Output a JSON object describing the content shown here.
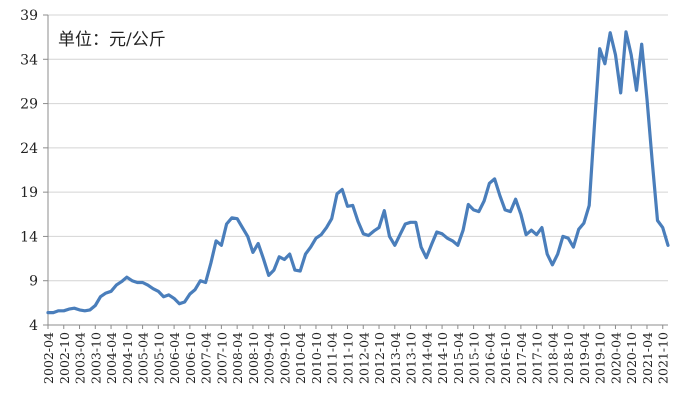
{
  "chart_data": {
    "type": "line",
    "title": "",
    "unit_note": "单位：元/公斤",
    "xlabel": "",
    "ylabel": "",
    "ylim": [
      4,
      39
    ],
    "y_ticks": [
      4,
      9,
      14,
      19,
      24,
      29,
      34,
      39
    ],
    "x_tick_labels": [
      "2002-04",
      "2002-10",
      "2003-04",
      "2003-10",
      "2004-04",
      "2004-10",
      "2005-04",
      "2005-10",
      "2006-04",
      "2006-10",
      "2007-04",
      "2007-10",
      "2008-04",
      "2008-10",
      "2009-04",
      "2009-10",
      "2010-04",
      "2010-10",
      "2011-04",
      "2011-10",
      "2012-04",
      "2012-10",
      "2013-04",
      "2013-10",
      "2014-04",
      "2014-10",
      "2015-04",
      "2015-10",
      "2016-04",
      "2016-10",
      "2017-04",
      "2017-10",
      "2018-04",
      "2018-10",
      "2019-04",
      "2019-10",
      "2020-04",
      "2020-10",
      "2021-04",
      "2021-10"
    ],
    "grid": "horizontal",
    "legend": "none",
    "line_color": "#4a7ebb",
    "series": [
      {
        "name": "",
        "points": [
          [
            "2002-04",
            5.4
          ],
          [
            "2002-06",
            5.4
          ],
          [
            "2002-08",
            5.6
          ],
          [
            "2002-10",
            5.6
          ],
          [
            "2002-12",
            5.8
          ],
          [
            "2003-02",
            5.9
          ],
          [
            "2003-04",
            5.7
          ],
          [
            "2003-06",
            5.6
          ],
          [
            "2003-08",
            5.7
          ],
          [
            "2003-10",
            6.2
          ],
          [
            "2003-12",
            7.2
          ],
          [
            "2004-02",
            7.6
          ],
          [
            "2004-04",
            7.8
          ],
          [
            "2004-06",
            8.5
          ],
          [
            "2004-08",
            8.9
          ],
          [
            "2004-10",
            9.4
          ],
          [
            "2004-12",
            9.0
          ],
          [
            "2005-02",
            8.8
          ],
          [
            "2005-04",
            8.8
          ],
          [
            "2005-06",
            8.5
          ],
          [
            "2005-08",
            8.1
          ],
          [
            "2005-10",
            7.8
          ],
          [
            "2005-12",
            7.2
          ],
          [
            "2006-02",
            7.4
          ],
          [
            "2006-04",
            7.0
          ],
          [
            "2006-06",
            6.4
          ],
          [
            "2006-08",
            6.6
          ],
          [
            "2006-10",
            7.5
          ],
          [
            "2006-12",
            8.0
          ],
          [
            "2007-02",
            9.0
          ],
          [
            "2007-04",
            8.8
          ],
          [
            "2007-06",
            11.0
          ],
          [
            "2007-08",
            13.5
          ],
          [
            "2007-10",
            13.0
          ],
          [
            "2007-12",
            15.4
          ],
          [
            "2008-02",
            16.1
          ],
          [
            "2008-04",
            16.0
          ],
          [
            "2008-06",
            15.0
          ],
          [
            "2008-08",
            14.0
          ],
          [
            "2008-10",
            12.2
          ],
          [
            "2008-12",
            13.2
          ],
          [
            "2009-02",
            11.5
          ],
          [
            "2009-04",
            9.6
          ],
          [
            "2009-06",
            10.2
          ],
          [
            "2009-08",
            11.7
          ],
          [
            "2009-10",
            11.4
          ],
          [
            "2009-12",
            12.0
          ],
          [
            "2010-02",
            10.2
          ],
          [
            "2010-04",
            10.1
          ],
          [
            "2010-06",
            12.0
          ],
          [
            "2010-08",
            12.8
          ],
          [
            "2010-10",
            13.8
          ],
          [
            "2010-12",
            14.2
          ],
          [
            "2011-02",
            15.0
          ],
          [
            "2011-04",
            16.0
          ],
          [
            "2011-06",
            18.8
          ],
          [
            "2011-08",
            19.3
          ],
          [
            "2011-10",
            17.4
          ],
          [
            "2011-12",
            17.5
          ],
          [
            "2012-02",
            15.7
          ],
          [
            "2012-04",
            14.3
          ],
          [
            "2012-06",
            14.1
          ],
          [
            "2012-08",
            14.6
          ],
          [
            "2012-10",
            15.0
          ],
          [
            "2012-12",
            16.9
          ],
          [
            "2013-02",
            14.0
          ],
          [
            "2013-04",
            13.0
          ],
          [
            "2013-06",
            14.2
          ],
          [
            "2013-08",
            15.4
          ],
          [
            "2013-10",
            15.6
          ],
          [
            "2013-12",
            15.6
          ],
          [
            "2014-02",
            12.8
          ],
          [
            "2014-04",
            11.6
          ],
          [
            "2014-06",
            13.1
          ],
          [
            "2014-08",
            14.5
          ],
          [
            "2014-10",
            14.3
          ],
          [
            "2014-12",
            13.8
          ],
          [
            "2015-02",
            13.5
          ],
          [
            "2015-04",
            13.0
          ],
          [
            "2015-06",
            14.7
          ],
          [
            "2015-08",
            17.6
          ],
          [
            "2015-10",
            17.0
          ],
          [
            "2015-12",
            16.8
          ],
          [
            "2016-02",
            18.0
          ],
          [
            "2016-04",
            20.0
          ],
          [
            "2016-06",
            20.5
          ],
          [
            "2016-08",
            18.6
          ],
          [
            "2016-10",
            17.0
          ],
          [
            "2016-12",
            16.8
          ],
          [
            "2017-02",
            18.2
          ],
          [
            "2017-04",
            16.5
          ],
          [
            "2017-06",
            14.2
          ],
          [
            "2017-08",
            14.7
          ],
          [
            "2017-10",
            14.2
          ],
          [
            "2017-12",
            15.0
          ],
          [
            "2018-02",
            12.0
          ],
          [
            "2018-04",
            10.8
          ],
          [
            "2018-06",
            12.0
          ],
          [
            "2018-08",
            14.0
          ],
          [
            "2018-10",
            13.8
          ],
          [
            "2018-12",
            12.8
          ],
          [
            "2019-02",
            14.8
          ],
          [
            "2019-04",
            15.5
          ],
          [
            "2019-06",
            17.5
          ],
          [
            "2019-08",
            26.5
          ],
          [
            "2019-10",
            35.2
          ],
          [
            "2019-12",
            33.5
          ],
          [
            "2020-02",
            37.0
          ],
          [
            "2020-04",
            34.5
          ],
          [
            "2020-06",
            30.2
          ],
          [
            "2020-08",
            37.1
          ],
          [
            "2020-10",
            34.5
          ],
          [
            "2020-12",
            30.5
          ],
          [
            "2021-02",
            35.7
          ],
          [
            "2021-04",
            29.5
          ],
          [
            "2021-06",
            22.5
          ],
          [
            "2021-08",
            15.8
          ],
          [
            "2021-10",
            15.0
          ],
          [
            "2021-12",
            13.0
          ]
        ]
      }
    ]
  }
}
